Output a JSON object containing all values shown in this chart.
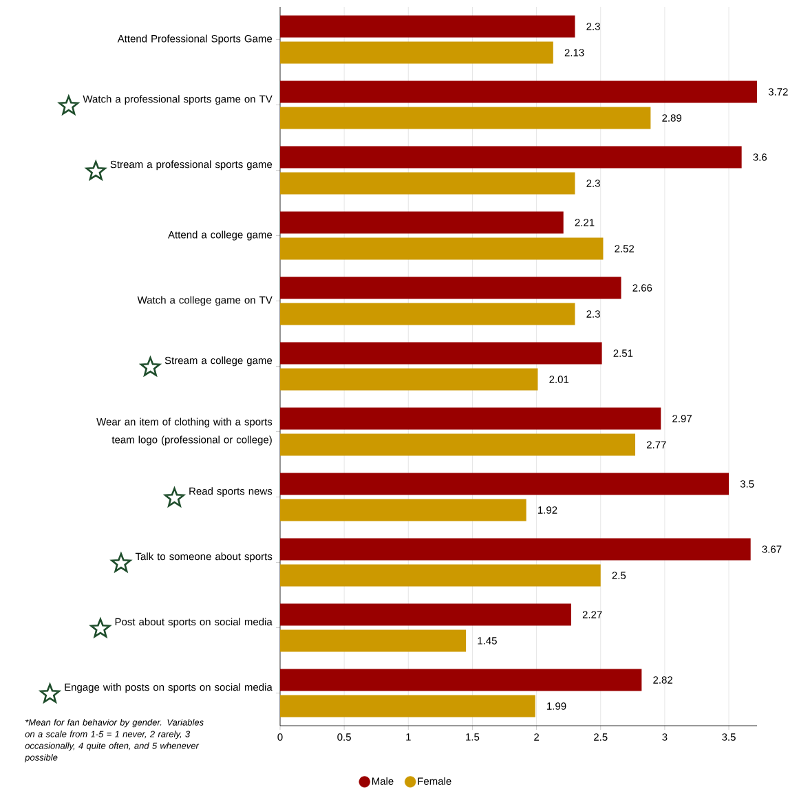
{
  "chart_data": {
    "type": "bar",
    "orientation": "horizontal",
    "categories": [
      "Attend Professional Sports Game",
      "Watch a professional sports game on TV",
      "Stream a professional sports game",
      "Attend a college game",
      "Watch a college game on TV",
      "Stream a college game",
      "Wear an item of clothing with a sports team logo (professional or college)",
      "Read sports news",
      "Talk to someone about sports",
      "Post about sports on social media",
      "Engage with posts on sports on social media"
    ],
    "series": [
      {
        "name": "Male",
        "color": "#990000",
        "values": [
          2.3,
          3.72,
          3.6,
          2.21,
          2.66,
          2.51,
          2.97,
          3.5,
          3.67,
          2.27,
          2.82
        ]
      },
      {
        "name": "Female",
        "color": "#cc9900",
        "values": [
          2.13,
          2.89,
          2.3,
          2.52,
          2.3,
          2.01,
          2.77,
          1.92,
          2.5,
          1.45,
          1.99
        ]
      }
    ],
    "xlim": [
      0,
      3.72
    ],
    "xticks": [
      0,
      0.5,
      1,
      1.5,
      2,
      2.5,
      3,
      3.5
    ],
    "grid": "x",
    "legend": "bottom",
    "data_labels": true,
    "annotations": [
      "*Mean for fan behavior by gender. Variables on a scale from 1-5 = 1 never, 2 rarely, 3 occasionally, 4 quite often, and 5 whenever possible"
    ]
  }
}
